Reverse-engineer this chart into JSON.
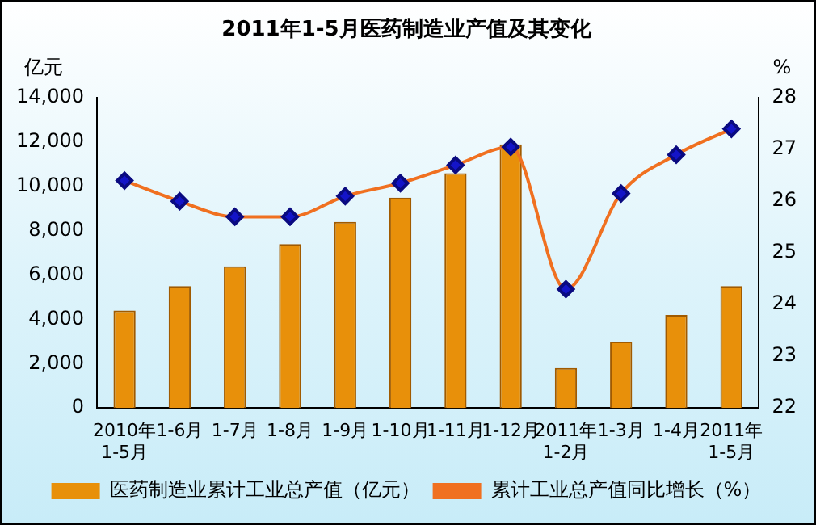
{
  "chart_data": {
    "type": "bar",
    "title": "2011年1-5月医药制造业产值及其变化",
    "ylabel": "亿元",
    "y2label": "%",
    "categories": [
      "2010年\n1-5月",
      "1-6月",
      "1-7月",
      "1-8月",
      "1-9月",
      "1-10月",
      "1-11月",
      "1-12月",
      "2011年\n1-2月",
      "1-3月",
      "1-4月",
      "2011年\n1-5月"
    ],
    "series": [
      {
        "name": "医药制造业累计工业总产值（亿元）",
        "color": "#e8900a",
        "values": [
          4400,
          5500,
          6400,
          7400,
          8400,
          9500,
          10600,
          11900,
          1800,
          3000,
          4200,
          5500
        ]
      },
      {
        "name": "累计工业总产值同比增长（%）",
        "type": "line",
        "axis": "y2",
        "color": "#f07020",
        "values": [
          26.4,
          26.0,
          25.7,
          25.7,
          26.1,
          26.35,
          26.7,
          27.05,
          24.3,
          26.15,
          26.9,
          27.4
        ]
      }
    ],
    "ylim": [
      0,
      14000
    ],
    "yticks": [
      0,
      {
        "value": 2000,
        "label": "2,000"
      },
      {
        "value": 4000,
        "label": "4,000"
      },
      {
        "value": 6000,
        "label": "6,000"
      },
      {
        "value": 8000,
        "label": "8,000"
      },
      {
        "value": 10000,
        "label": "10,000"
      },
      {
        "value": 12000,
        "label": "12,000"
      },
      {
        "value": 14000,
        "label": "14,000"
      }
    ],
    "y2lim": [
      22,
      28
    ],
    "y2ticks": [
      22,
      23,
      24,
      25,
      26,
      27,
      28
    ],
    "grid": false,
    "legend": "bottom",
    "marker": "diamond",
    "line_style": "solid"
  }
}
